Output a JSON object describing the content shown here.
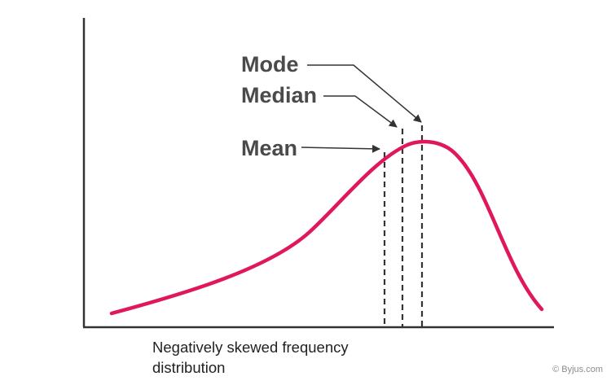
{
  "labels": {
    "mode": "Mode",
    "median": "Median",
    "mean": "Mean"
  },
  "caption_line1": "Negatively skewed frequency",
  "caption_line2": "distribution",
  "credit": "© Byjus.com",
  "colors": {
    "curve": "#e0185a",
    "axis": "#333333",
    "label_text": "#4a4a4a",
    "guide_lines": "#333333"
  }
}
